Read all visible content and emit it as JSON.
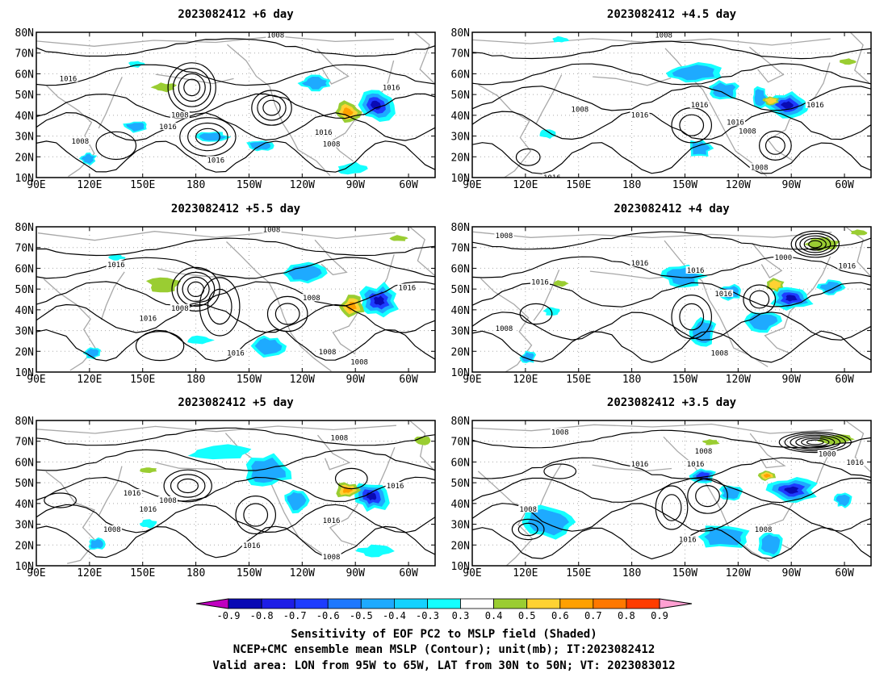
{
  "panels": [
    {
      "id": "p6",
      "title": "2023082412 +6 day",
      "labels": [
        "1008",
        "1016",
        "1008",
        "1016",
        "1016",
        "1016",
        "1008",
        "1008",
        "1016"
      ]
    },
    {
      "id": "p45",
      "title": "2023082412 +4.5 day",
      "labels": [
        "1008",
        "1016",
        "1008",
        "1016",
        "1016",
        "1016",
        "1008",
        "1008",
        "1016"
      ]
    },
    {
      "id": "p55",
      "title": "2023082412 +5.5 day",
      "labels": [
        "1008",
        "1016",
        "1008",
        "1016",
        "1016",
        "1008",
        "1008",
        "1008",
        "1016"
      ]
    },
    {
      "id": "p4",
      "title": "2023082412 +4 day",
      "labels": [
        "1008",
        "1016",
        "1016",
        "1016",
        "1008",
        "1016",
        "1000",
        "1016",
        "1008"
      ]
    },
    {
      "id": "p5",
      "title": "2023082412 +5 day",
      "labels": [
        "1008",
        "1016",
        "1016",
        "1008",
        "1008",
        "1016",
        "1016",
        "1016",
        "1008"
      ]
    },
    {
      "id": "p35",
      "title": "2023082412 +3.5 day",
      "labels": [
        "1008",
        "1016",
        "1016",
        "1008",
        "1016",
        "1008",
        "1000",
        "1016",
        "1008"
      ]
    }
  ],
  "axes": {
    "lat_labels": [
      "80N",
      "70N",
      "60N",
      "50N",
      "40N",
      "30N",
      "20N",
      "10N"
    ],
    "lon_labels": [
      "90E",
      "120E",
      "150E",
      "180",
      "150W",
      "120W",
      "90W",
      "60W"
    ],
    "lat_range": [
      10,
      80
    ],
    "lon_range_deg_east": [
      90,
      315
    ]
  },
  "colorbar": {
    "ticks": [
      "-0.9",
      "-0.8",
      "-0.7",
      "-0.6",
      "-0.5",
      "-0.4",
      "-0.3",
      "0.3",
      "0.4",
      "0.5",
      "0.6",
      "0.7",
      "0.8",
      "0.9"
    ],
    "colors": [
      "#c000c0",
      "#0a0ab4",
      "#1e1ee6",
      "#1e3cff",
      "#1e78ff",
      "#1eaaff",
      "#14d2ff",
      "#14ffff",
      "#ffffff",
      "#9acd32",
      "#ffd232",
      "#ffa000",
      "#ff7800",
      "#ff3c00",
      "#ff0000",
      "#ffa0d2"
    ]
  },
  "caption": {
    "line1": "Sensitivity of EOF PC2 to MSLP field (Shaded)",
    "line2": "NCEP+CMC ensemble mean MSLP (Contour); unit(mb); IT:2023082412",
    "line3": "Valid area: LON from 95W to 65W, LAT from 30N to 50N; VT: 2023083012"
  }
}
